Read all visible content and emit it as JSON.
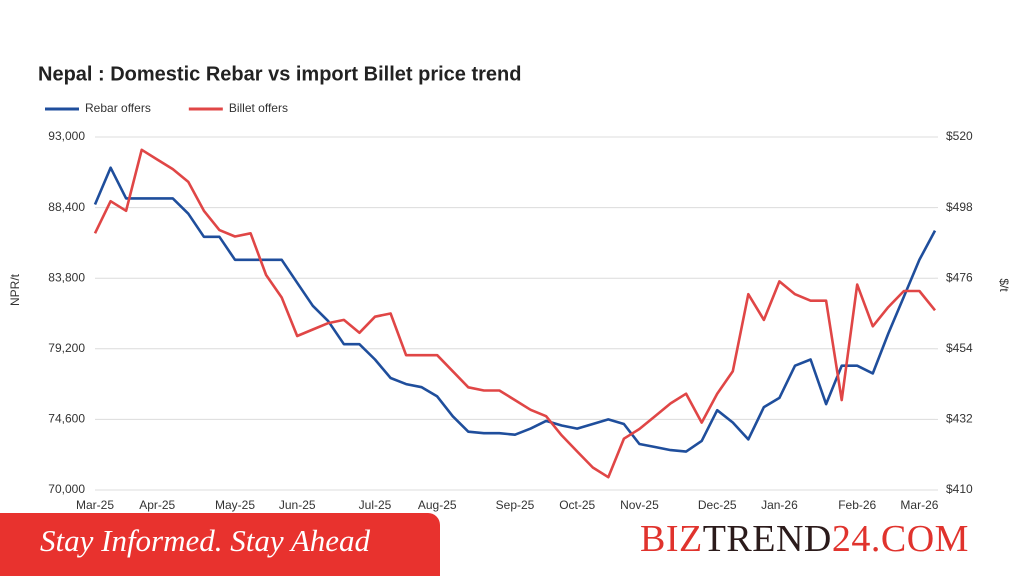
{
  "chart_data": {
    "type": "line",
    "title": "Nepal : Domestic Rebar vs import Billet price trend",
    "ylabel": "NPR/t",
    "y2label": "$/t",
    "categories": [
      "Mar-25",
      null,
      null,
      null,
      "Apr-25",
      null,
      null,
      null,
      null,
      "May-25",
      null,
      null,
      null,
      "Jun-25",
      null,
      null,
      null,
      null,
      "Jul-25",
      null,
      null,
      null,
      "Aug-25",
      null,
      null,
      null,
      null,
      "Sep-25",
      null,
      null,
      null,
      "Oct-25",
      null,
      null,
      null,
      "Nov-25",
      null,
      null,
      null,
      null,
      "Dec-25",
      null,
      null,
      null,
      "Jan-26",
      null,
      null,
      null,
      null,
      "Feb-26",
      null,
      null,
      null,
      "Mar-26",
      null
    ],
    "series": [
      {
        "name": "Rebar offers",
        "color": "#1f4e9c",
        "values": [
          88600,
          91000,
          89000,
          89000,
          89000,
          89000,
          88000,
          86500,
          86500,
          85000,
          85000,
          85000,
          85000,
          83500,
          82000,
          81000,
          79500,
          79500,
          78500,
          77300,
          76900,
          76700,
          76100,
          74800,
          73800,
          73700,
          73700,
          73600,
          74000,
          74500,
          74200,
          74000,
          74300,
          74600,
          74300,
          73000,
          72800,
          72600,
          72500,
          73200,
          75200,
          74400,
          73300,
          75400,
          76000,
          78100,
          78500,
          75600,
          78100,
          78100,
          77600,
          80200,
          82600,
          85000,
          86900
        ]
      },
      {
        "name": "Billet offers",
        "color": "#e04646",
        "axis": "y2",
        "values": [
          490,
          500,
          497,
          516,
          513,
          510,
          506,
          497,
          491,
          489,
          490,
          477,
          470,
          458,
          460,
          462,
          463,
          459,
          464,
          465,
          452,
          452,
          452,
          447,
          442,
          441,
          441,
          438,
          435,
          433,
          427,
          422,
          417,
          414,
          426,
          429,
          433,
          437,
          440,
          431,
          440,
          447,
          471,
          463,
          475,
          471,
          469,
          469,
          438,
          474,
          461,
          467,
          472,
          472,
          466
        ]
      }
    ],
    "ylim": [
      70000,
      93000
    ],
    "yticks": [
      {
        "value": 70000,
        "label": "70,000"
      },
      {
        "value": 74600,
        "label": "74,600"
      },
      {
        "value": 79200,
        "label": "79,200"
      },
      {
        "value": 83800,
        "label": "83,800"
      },
      {
        "value": 88400,
        "label": "88,400"
      },
      {
        "value": 93000,
        "label": "93,000"
      }
    ],
    "y2lim": [
      410,
      520
    ],
    "y2ticks": [
      {
        "value": 410,
        "label": "$410"
      },
      {
        "value": 432,
        "label": "$432"
      },
      {
        "value": 454,
        "label": "$454"
      },
      {
        "value": 476,
        "label": "$476"
      },
      {
        "value": 498,
        "label": "$498"
      },
      {
        "value": 520,
        "label": "$520"
      }
    ],
    "grid": true,
    "legend": "top-left"
  },
  "footer": {
    "tagline": "Stay Informed. Stay Ahead",
    "brand": [
      "BIZ",
      "TREND",
      "24.COM"
    ]
  }
}
